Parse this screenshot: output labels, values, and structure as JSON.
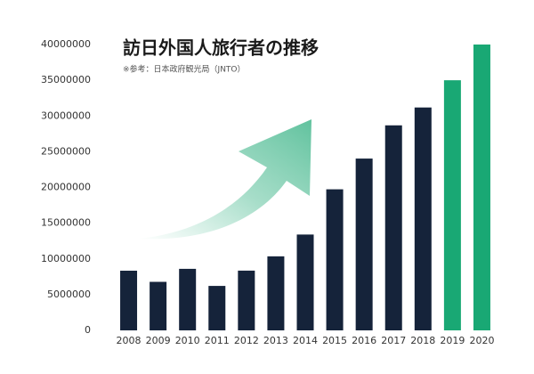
{
  "chart_data": {
    "type": "bar",
    "title": "訪日外国人旅行者の推移",
    "subtitle": "※参考：日本政府観光局（JNTO）",
    "categories": [
      "2008",
      "2009",
      "2010",
      "2011",
      "2012",
      "2013",
      "2014",
      "2015",
      "2016",
      "2017",
      "2018",
      "2019",
      "2020"
    ],
    "values": [
      8350000,
      6790000,
      8610000,
      6220000,
      8360000,
      10360000,
      13410000,
      19740000,
      24040000,
      28690000,
      31190000,
      35000000,
      40000000
    ],
    "colors": [
      "#15233a",
      "#15233a",
      "#15233a",
      "#15233a",
      "#15233a",
      "#15233a",
      "#15233a",
      "#15233a",
      "#15233a",
      "#15233a",
      "#15233a",
      "#19a874",
      "#19a874"
    ],
    "ylim": [
      0,
      40000000
    ],
    "yticks": [
      0,
      5000000,
      10000000,
      15000000,
      20000000,
      25000000,
      30000000,
      35000000,
      40000000
    ],
    "grid": false
  }
}
